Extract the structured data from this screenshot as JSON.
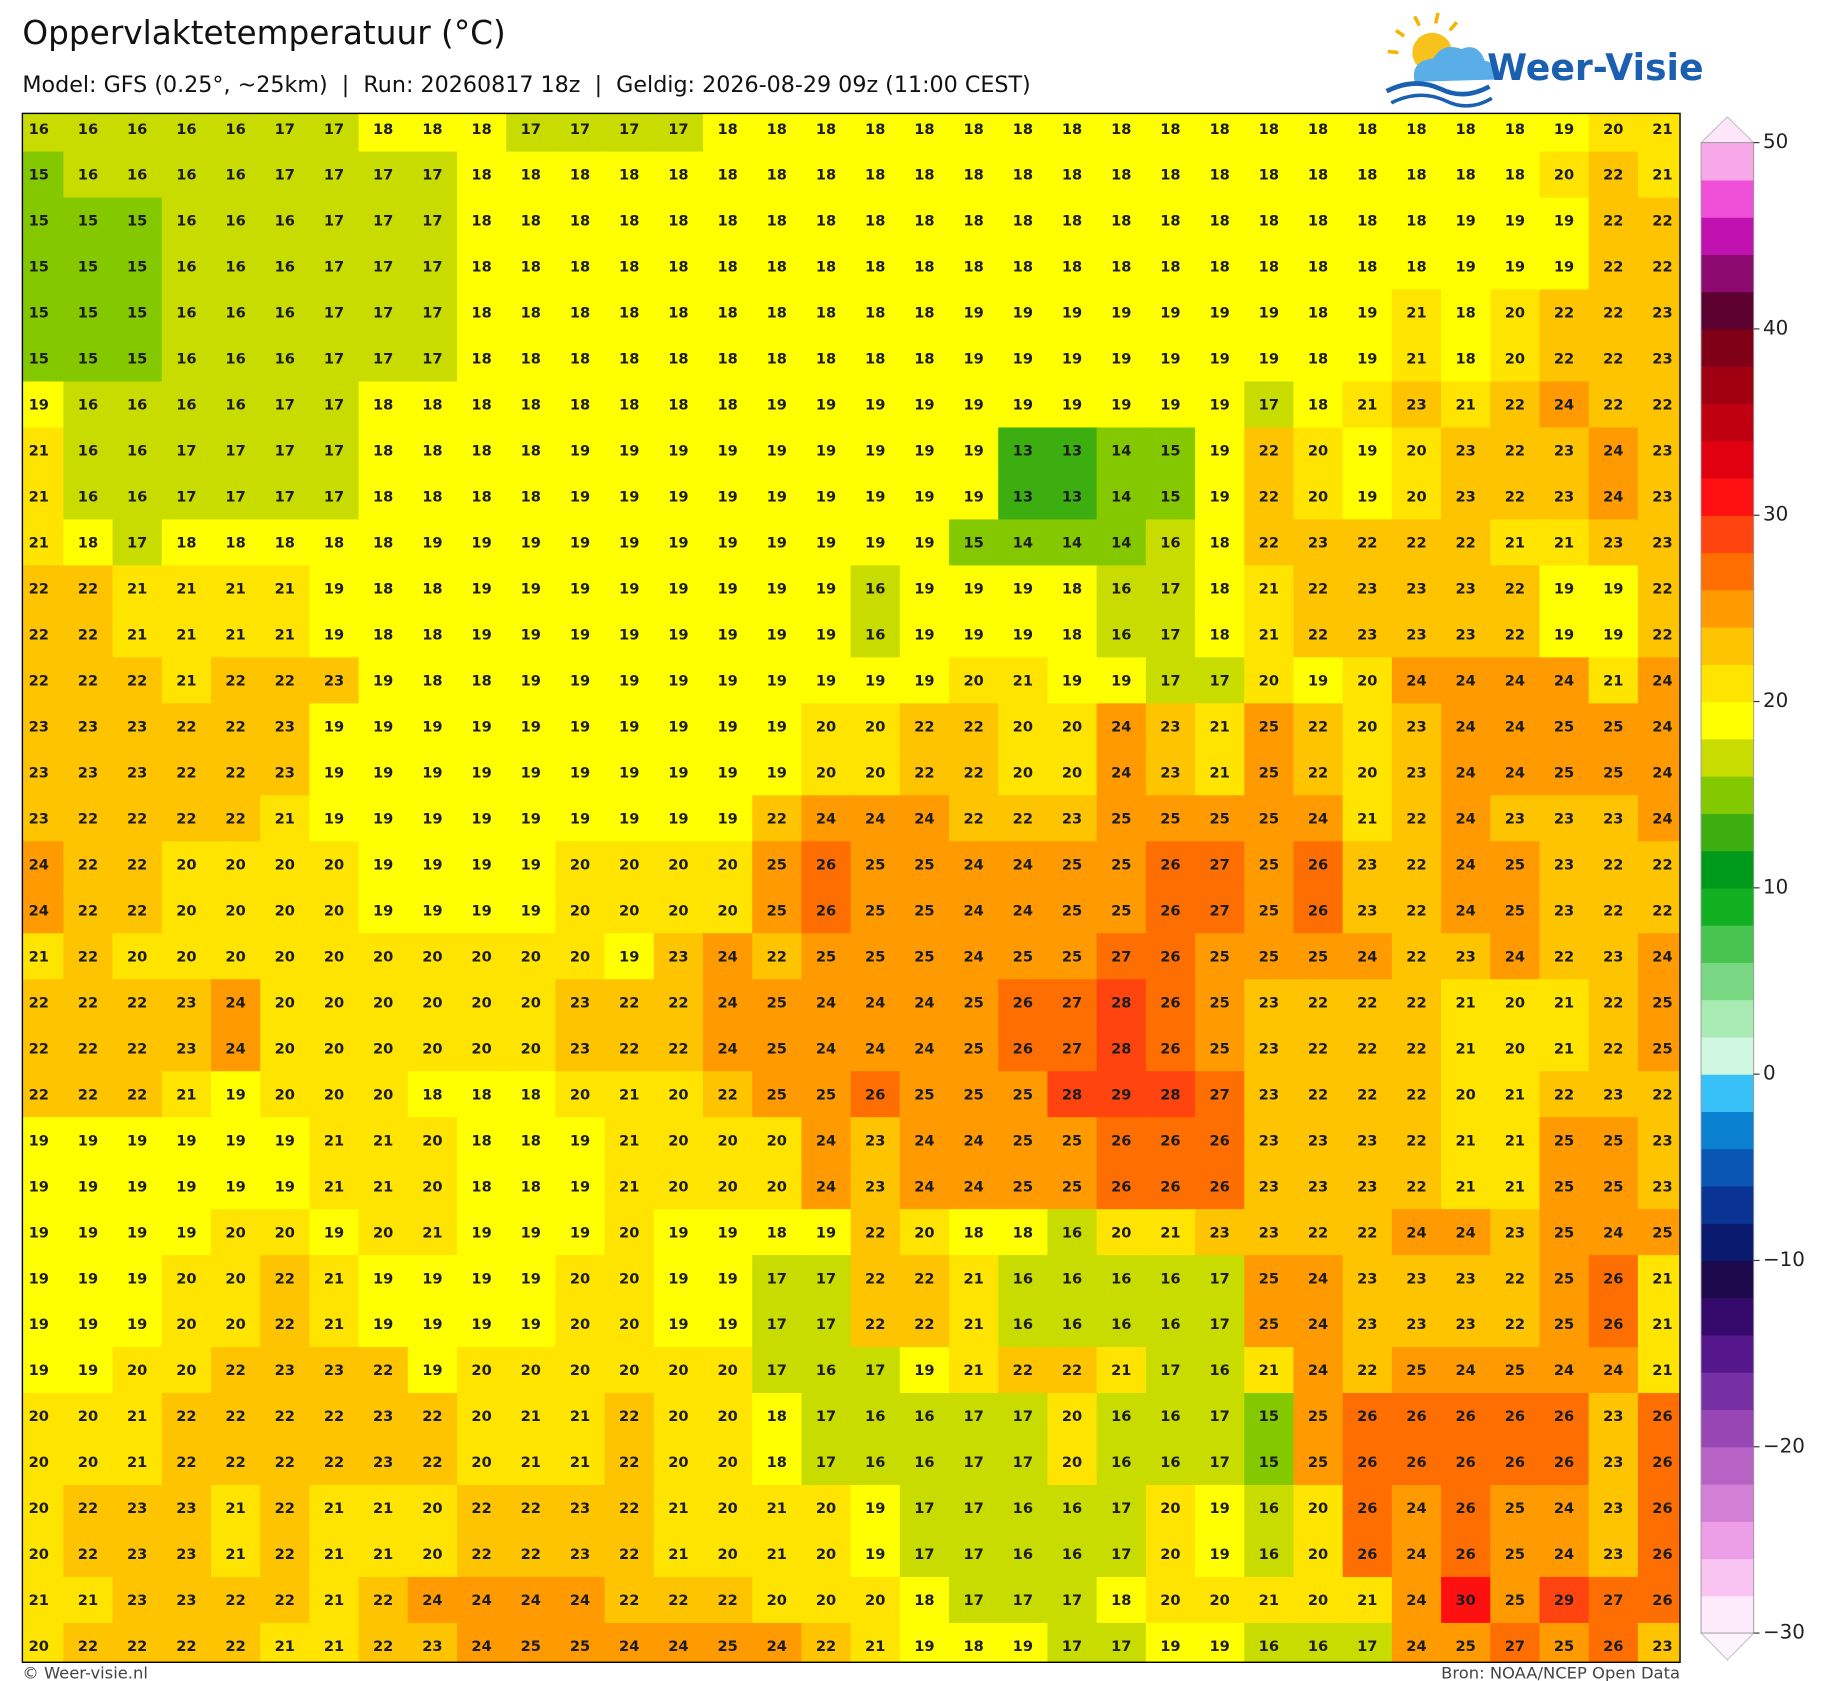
{
  "chart_data": {
    "type": "grid",
    "title": "Oppervlaktetemperatuur (°C)",
    "subtitle": "Model: GFS (0.25°, ~25km)  |  Run: 20260817 18z  |  Geldig: 2026-08-29 09z (11:00 CEST)",
    "values": [
      [
        16,
        16,
        16,
        16,
        16,
        17,
        17,
        18,
        18,
        18,
        17,
        17,
        17,
        17,
        18,
        18,
        18,
        18,
        18,
        18,
        18,
        18,
        18,
        18,
        18,
        18,
        18,
        18,
        18,
        18,
        18,
        19,
        20,
        21
      ],
      [
        15,
        16,
        16,
        16,
        16,
        17,
        17,
        17,
        17,
        18,
        18,
        18,
        18,
        18,
        18,
        18,
        18,
        18,
        18,
        18,
        18,
        18,
        18,
        18,
        18,
        18,
        18,
        18,
        18,
        18,
        18,
        20,
        22,
        21
      ],
      [
        15,
        15,
        15,
        16,
        16,
        16,
        17,
        17,
        17,
        18,
        18,
        18,
        18,
        18,
        18,
        18,
        18,
        18,
        18,
        18,
        18,
        18,
        18,
        18,
        18,
        18,
        18,
        18,
        18,
        19,
        19,
        19,
        22,
        22
      ],
      [
        15,
        15,
        15,
        16,
        16,
        16,
        17,
        17,
        17,
        18,
        18,
        18,
        18,
        18,
        18,
        18,
        18,
        18,
        18,
        18,
        18,
        18,
        18,
        18,
        18,
        18,
        18,
        18,
        18,
        19,
        19,
        19,
        22,
        22
      ],
      [
        15,
        15,
        15,
        16,
        16,
        16,
        17,
        17,
        17,
        18,
        18,
        18,
        18,
        18,
        18,
        18,
        18,
        18,
        18,
        19,
        19,
        19,
        19,
        19,
        19,
        19,
        18,
        19,
        21,
        18,
        20,
        22,
        22,
        23
      ],
      [
        15,
        15,
        15,
        16,
        16,
        16,
        17,
        17,
        17,
        18,
        18,
        18,
        18,
        18,
        18,
        18,
        18,
        18,
        18,
        19,
        19,
        19,
        19,
        19,
        19,
        19,
        18,
        19,
        21,
        18,
        20,
        22,
        22,
        23
      ],
      [
        19,
        16,
        16,
        16,
        16,
        17,
        17,
        18,
        18,
        18,
        18,
        18,
        18,
        18,
        18,
        19,
        19,
        19,
        19,
        19,
        19,
        19,
        19,
        19,
        19,
        17,
        18,
        21,
        23,
        21,
        22,
        24,
        22,
        22
      ],
      [
        21,
        16,
        16,
        17,
        17,
        17,
        17,
        18,
        18,
        18,
        18,
        19,
        19,
        19,
        19,
        19,
        19,
        19,
        19,
        19,
        13,
        13,
        14,
        15,
        19,
        22,
        20,
        19,
        20,
        23,
        22,
        23,
        24,
        23
      ],
      [
        21,
        16,
        16,
        17,
        17,
        17,
        17,
        18,
        18,
        18,
        18,
        19,
        19,
        19,
        19,
        19,
        19,
        19,
        19,
        19,
        13,
        13,
        14,
        15,
        19,
        22,
        20,
        19,
        20,
        23,
        22,
        23,
        24,
        23
      ],
      [
        21,
        18,
        17,
        18,
        18,
        18,
        18,
        18,
        19,
        19,
        19,
        19,
        19,
        19,
        19,
        19,
        19,
        19,
        19,
        15,
        14,
        14,
        14,
        16,
        18,
        22,
        23,
        22,
        22,
        22,
        21,
        21,
        23,
        23
      ],
      [
        22,
        22,
        21,
        21,
        21,
        21,
        19,
        18,
        18,
        19,
        19,
        19,
        19,
        19,
        19,
        19,
        19,
        16,
        19,
        19,
        19,
        18,
        16,
        17,
        18,
        21,
        22,
        23,
        23,
        23,
        22,
        19,
        19,
        22
      ],
      [
        22,
        22,
        21,
        21,
        21,
        21,
        19,
        18,
        18,
        19,
        19,
        19,
        19,
        19,
        19,
        19,
        19,
        16,
        19,
        19,
        19,
        18,
        16,
        17,
        18,
        21,
        22,
        23,
        23,
        23,
        22,
        19,
        19,
        22
      ],
      [
        22,
        22,
        22,
        21,
        22,
        22,
        23,
        19,
        18,
        18,
        19,
        19,
        19,
        19,
        19,
        19,
        19,
        19,
        19,
        20,
        21,
        19,
        19,
        17,
        17,
        20,
        19,
        20,
        24,
        24,
        24,
        24,
        21,
        24
      ],
      [
        23,
        23,
        23,
        22,
        22,
        23,
        19,
        19,
        19,
        19,
        19,
        19,
        19,
        19,
        19,
        19,
        20,
        20,
        22,
        22,
        20,
        20,
        24,
        23,
        21,
        25,
        22,
        20,
        23,
        24,
        24,
        25,
        25,
        24
      ],
      [
        23,
        23,
        23,
        22,
        22,
        23,
        19,
        19,
        19,
        19,
        19,
        19,
        19,
        19,
        19,
        19,
        20,
        20,
        22,
        22,
        20,
        20,
        24,
        23,
        21,
        25,
        22,
        20,
        23,
        24,
        24,
        25,
        25,
        24
      ],
      [
        23,
        22,
        22,
        22,
        22,
        21,
        19,
        19,
        19,
        19,
        19,
        19,
        19,
        19,
        19,
        22,
        24,
        24,
        24,
        22,
        22,
        23,
        25,
        25,
        25,
        25,
        24,
        21,
        22,
        24,
        23,
        23,
        23,
        24
      ],
      [
        24,
        22,
        22,
        20,
        20,
        20,
        20,
        19,
        19,
        19,
        19,
        20,
        20,
        20,
        20,
        25,
        26,
        25,
        25,
        24,
        24,
        25,
        25,
        26,
        27,
        25,
        26,
        23,
        22,
        24,
        25,
        23,
        22,
        22
      ],
      [
        24,
        22,
        22,
        20,
        20,
        20,
        20,
        19,
        19,
        19,
        19,
        20,
        20,
        20,
        20,
        25,
        26,
        25,
        25,
        24,
        24,
        25,
        25,
        26,
        27,
        25,
        26,
        23,
        22,
        24,
        25,
        23,
        22,
        22
      ],
      [
        21,
        22,
        20,
        20,
        20,
        20,
        20,
        20,
        20,
        20,
        20,
        20,
        19,
        23,
        24,
        22,
        25,
        25,
        25,
        24,
        25,
        25,
        27,
        26,
        25,
        25,
        25,
        24,
        22,
        23,
        24,
        22,
        23,
        24
      ],
      [
        22,
        22,
        22,
        23,
        24,
        20,
        20,
        20,
        20,
        20,
        20,
        23,
        22,
        22,
        24,
        25,
        24,
        24,
        24,
        25,
        26,
        27,
        28,
        26,
        25,
        23,
        22,
        22,
        22,
        21,
        20,
        21,
        22,
        25
      ],
      [
        22,
        22,
        22,
        23,
        24,
        20,
        20,
        20,
        20,
        20,
        20,
        23,
        22,
        22,
        24,
        25,
        24,
        24,
        24,
        25,
        26,
        27,
        28,
        26,
        25,
        23,
        22,
        22,
        22,
        21,
        20,
        21,
        22,
        25
      ],
      [
        22,
        22,
        22,
        21,
        19,
        20,
        20,
        20,
        18,
        18,
        18,
        20,
        21,
        20,
        22,
        25,
        25,
        26,
        25,
        25,
        25,
        28,
        29,
        28,
        27,
        23,
        22,
        22,
        22,
        20,
        21,
        22,
        23,
        22
      ],
      [
        19,
        19,
        19,
        19,
        19,
        19,
        21,
        21,
        20,
        18,
        18,
        19,
        21,
        20,
        20,
        20,
        24,
        23,
        24,
        24,
        25,
        25,
        26,
        26,
        26,
        23,
        23,
        23,
        22,
        21,
        21,
        25,
        25,
        23
      ],
      [
        19,
        19,
        19,
        19,
        19,
        19,
        21,
        21,
        20,
        18,
        18,
        19,
        21,
        20,
        20,
        20,
        24,
        23,
        24,
        24,
        25,
        25,
        26,
        26,
        26,
        23,
        23,
        23,
        22,
        21,
        21,
        25,
        25,
        23
      ],
      [
        19,
        19,
        19,
        19,
        20,
        20,
        19,
        20,
        21,
        19,
        19,
        19,
        20,
        19,
        19,
        18,
        19,
        22,
        20,
        18,
        18,
        16,
        20,
        21,
        23,
        23,
        22,
        22,
        24,
        24,
        23,
        25,
        24,
        25
      ],
      [
        19,
        19,
        19,
        20,
        20,
        22,
        21,
        19,
        19,
        19,
        19,
        20,
        20,
        19,
        19,
        17,
        17,
        22,
        22,
        21,
        16,
        16,
        16,
        16,
        17,
        25,
        24,
        23,
        23,
        23,
        22,
        25,
        26,
        21
      ],
      [
        19,
        19,
        19,
        20,
        20,
        22,
        21,
        19,
        19,
        19,
        19,
        20,
        20,
        19,
        19,
        17,
        17,
        22,
        22,
        21,
        16,
        16,
        16,
        16,
        17,
        25,
        24,
        23,
        23,
        23,
        22,
        25,
        26,
        21
      ],
      [
        19,
        19,
        20,
        20,
        22,
        23,
        23,
        22,
        19,
        20,
        20,
        20,
        20,
        20,
        20,
        17,
        16,
        17,
        19,
        21,
        22,
        22,
        21,
        17,
        16,
        21,
        24,
        22,
        25,
        24,
        25,
        24,
        24,
        21
      ],
      [
        20,
        20,
        21,
        22,
        22,
        22,
        22,
        23,
        22,
        20,
        21,
        21,
        22,
        20,
        20,
        18,
        17,
        16,
        16,
        17,
        17,
        20,
        16,
        16,
        17,
        15,
        25,
        26,
        26,
        26,
        26,
        26,
        23,
        26
      ],
      [
        20,
        20,
        21,
        22,
        22,
        22,
        22,
        23,
        22,
        20,
        21,
        21,
        22,
        20,
        20,
        18,
        17,
        16,
        16,
        17,
        17,
        20,
        16,
        16,
        17,
        15,
        25,
        26,
        26,
        26,
        26,
        26,
        23,
        26
      ],
      [
        20,
        22,
        23,
        23,
        21,
        22,
        21,
        21,
        20,
        22,
        22,
        23,
        22,
        21,
        20,
        21,
        20,
        19,
        17,
        17,
        16,
        16,
        17,
        20,
        19,
        16,
        20,
        26,
        24,
        26,
        25,
        24,
        23,
        26
      ],
      [
        20,
        22,
        23,
        23,
        21,
        22,
        21,
        21,
        20,
        22,
        22,
        23,
        22,
        21,
        20,
        21,
        20,
        19,
        17,
        17,
        16,
        16,
        17,
        20,
        19,
        16,
        20,
        26,
        24,
        26,
        25,
        24,
        23,
        26
      ],
      [
        21,
        21,
        23,
        23,
        22,
        22,
        21,
        22,
        24,
        24,
        24,
        24,
        22,
        22,
        22,
        20,
        20,
        20,
        18,
        17,
        17,
        17,
        18,
        20,
        20,
        21,
        20,
        21,
        24,
        30,
        25,
        29,
        27,
        26
      ],
      [
        20,
        22,
        22,
        22,
        22,
        21,
        21,
        22,
        23,
        24,
        25,
        25,
        24,
        24,
        25,
        24,
        22,
        21,
        19,
        18,
        19,
        17,
        17,
        19,
        19,
        16,
        16,
        17,
        24,
        25,
        27,
        25,
        26,
        23
      ]
    ],
    "colorbar": {
      "lim": [
        -30,
        50
      ],
      "ticks": [
        {
          "value": -30,
          "label": "−30"
        },
        {
          "value": -20,
          "label": "−20"
        },
        {
          "value": -10,
          "label": "−10"
        },
        0,
        10,
        20,
        30,
        40,
        50
      ],
      "colors": [
        "#fdeafa",
        "#f9c4f1",
        "#ec9ee6",
        "#d47fd6",
        "#b862c6",
        "#9846b4",
        "#7630a4",
        "#56168c",
        "#360a6c",
        "#1c0a4c",
        "#0a1a6e",
        "#0a3494",
        "#0a56b4",
        "#0a80d0",
        "#38c0f8",
        "#d0f8e0",
        "#a8ecb4",
        "#78d884",
        "#48c450",
        "#10b020",
        "#009a1a",
        "#3cae10",
        "#84c800",
        "#c8dc00",
        "#ffff00",
        "#ffe400",
        "#ffc400",
        "#ff9a00",
        "#ff6e00",
        "#ff4410",
        "#ff1010",
        "#e00010",
        "#c00010",
        "#a00010",
        "#800018",
        "#5c0030",
        "#8c0a70",
        "#c010b0",
        "#f050d8",
        "#f8a8e8"
      ]
    }
  },
  "logo": "Weer-Visie",
  "footer": {
    "credit": "© Weer-visie.nl",
    "source": "Bron: NOAA/NCEP Open Data"
  }
}
